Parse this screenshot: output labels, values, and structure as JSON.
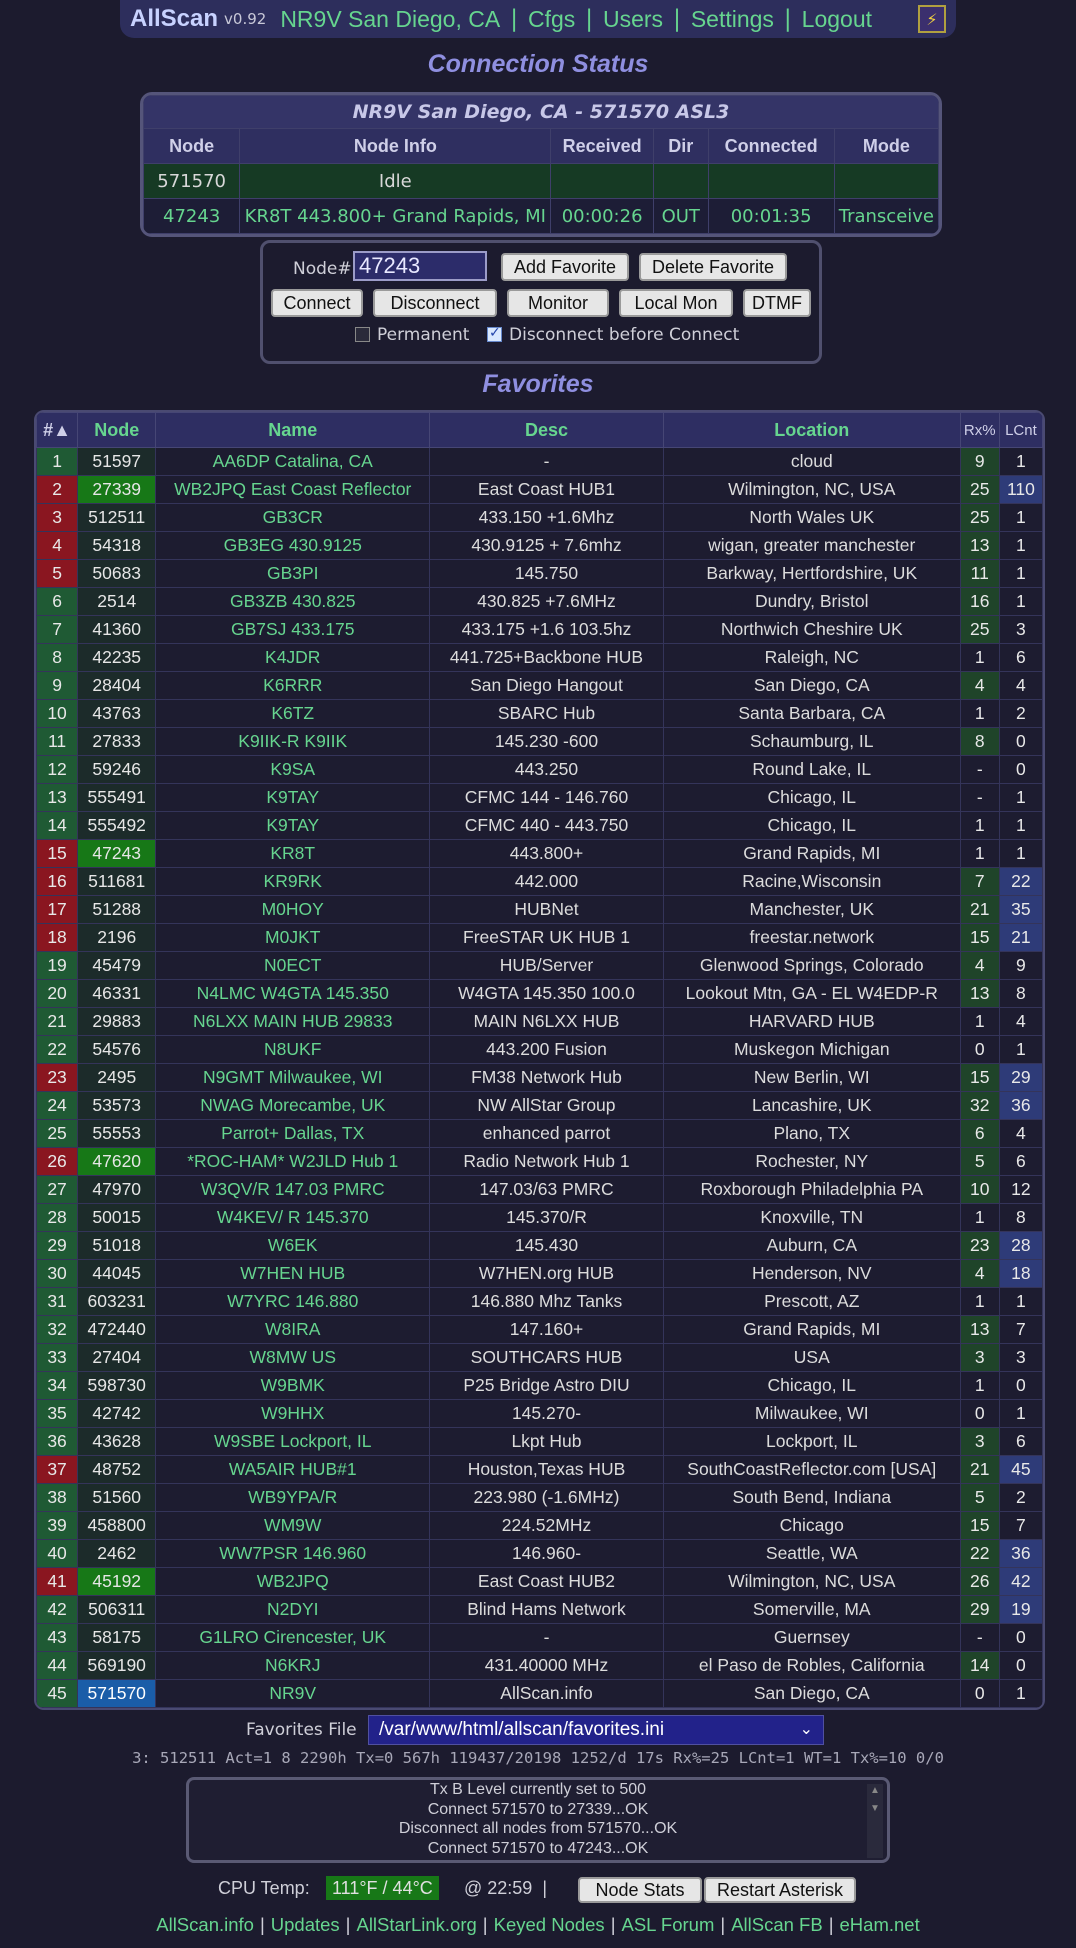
{
  "nav": {
    "brand": "AllScan",
    "version": "v0.92",
    "links": [
      "NR9V San Diego, CA",
      "Cfgs",
      "Users",
      "Settings",
      "Logout"
    ]
  },
  "connection": {
    "section_title": "Connection Status",
    "table_title": "NR9V San Diego, CA - 571570 ASL3",
    "headers": [
      "Node",
      "Node Info",
      "Received",
      "Dir",
      "Connected",
      "Mode"
    ],
    "rows": [
      {
        "node": "571570",
        "info": "Idle",
        "received": "",
        "dir": "",
        "connected": "",
        "mode": ""
      },
      {
        "node": "47243",
        "info": "KR8T 443.800+ Grand Rapids, MI",
        "received": "00:00:26",
        "dir": "OUT",
        "connected": "00:01:35",
        "mode": "Transceive"
      }
    ]
  },
  "controls": {
    "node_label": "Node#",
    "node_value": "47243",
    "add_favorite": "Add Favorite",
    "delete_favorite": "Delete Favorite",
    "connect": "Connect",
    "disconnect": "Disconnect",
    "monitor": "Monitor",
    "local_mon": "Local Mon",
    "dtmf": "DTMF",
    "permanent_label": "Permanent",
    "permanent_checked": false,
    "disconnect_before_label": "Disconnect before Connect",
    "disconnect_before_checked": true
  },
  "favorites": {
    "section_title": "Favorites",
    "headers": [
      "#▲",
      "Node",
      "Name",
      "Desc",
      "Location",
      "Rx%",
      "LCnt"
    ],
    "rows": [
      {
        "i": "1",
        "node": "51597",
        "name": "AA6DP Catalina, CA",
        "desc": "-",
        "loc": "cloud",
        "rx": "9",
        "lc": "1",
        "ic": "g",
        "nh": "",
        "rxa": true,
        "lca": false
      },
      {
        "i": "2",
        "node": "27339",
        "name": "WB2JPQ East Coast Reflector",
        "desc": "East Coast HUB1",
        "loc": "Wilmington, NC, USA",
        "rx": "25",
        "lc": "110",
        "ic": "r",
        "nh": "hl",
        "rxa": true,
        "lca": true
      },
      {
        "i": "3",
        "node": "512511",
        "name": "GB3CR",
        "desc": "433.150 +1.6Mhz",
        "loc": "North Wales UK",
        "rx": "25",
        "lc": "1",
        "ic": "r",
        "nh": "",
        "rxa": true,
        "lca": false
      },
      {
        "i": "4",
        "node": "54318",
        "name": "GB3EG 430.9125",
        "desc": "430.9125 + 7.6mhz",
        "loc": "wigan, greater manchester",
        "rx": "13",
        "lc": "1",
        "ic": "r",
        "nh": "",
        "rxa": true,
        "lca": false
      },
      {
        "i": "5",
        "node": "50683",
        "name": "GB3PI",
        "desc": "145.750",
        "loc": "Barkway, Hertfordshire, UK",
        "rx": "11",
        "lc": "1",
        "ic": "r",
        "nh": "",
        "rxa": true,
        "lca": false
      },
      {
        "i": "6",
        "node": "2514",
        "name": "GB3ZB 430.825",
        "desc": "430.825 +7.6MHz",
        "loc": "Dundry, Bristol",
        "rx": "16",
        "lc": "1",
        "ic": "g",
        "nh": "",
        "rxa": true,
        "lca": false
      },
      {
        "i": "7",
        "node": "41360",
        "name": "GB7SJ 433.175",
        "desc": "433.175 +1.6 103.5hz",
        "loc": "Northwich Cheshire UK",
        "rx": "25",
        "lc": "3",
        "ic": "g",
        "nh": "",
        "rxa": true,
        "lca": false
      },
      {
        "i": "8",
        "node": "42235",
        "name": "K4JDR",
        "desc": "441.725+Backbone HUB",
        "loc": "Raleigh, NC",
        "rx": "1",
        "lc": "6",
        "ic": "g",
        "nh": "",
        "rxa": false,
        "lca": false
      },
      {
        "i": "9",
        "node": "28404",
        "name": "K6RRR",
        "desc": "San Diego Hangout",
        "loc": "San Diego, CA",
        "rx": "4",
        "lc": "4",
        "ic": "g",
        "nh": "",
        "rxa": true,
        "lca": false
      },
      {
        "i": "10",
        "node": "43763",
        "name": "K6TZ",
        "desc": "SBARC Hub",
        "loc": "Santa Barbara, CA",
        "rx": "1",
        "lc": "2",
        "ic": "g",
        "nh": "",
        "rxa": false,
        "lca": false
      },
      {
        "i": "11",
        "node": "27833",
        "name": "K9IIK-R K9IIK",
        "desc": "145.230 -600",
        "loc": "Schaumburg, IL",
        "rx": "8",
        "lc": "0",
        "ic": "g",
        "nh": "",
        "rxa": true,
        "lca": false
      },
      {
        "i": "12",
        "node": "59246",
        "name": "K9SA",
        "desc": "443.250",
        "loc": "Round Lake, IL",
        "rx": "-",
        "lc": "0",
        "ic": "g",
        "nh": "",
        "rxa": false,
        "lca": false
      },
      {
        "i": "13",
        "node": "555491",
        "name": "K9TAY",
        "desc": "CFMC 144 - 146.760",
        "loc": "Chicago, IL",
        "rx": "-",
        "lc": "1",
        "ic": "g",
        "nh": "",
        "rxa": false,
        "lca": false
      },
      {
        "i": "14",
        "node": "555492",
        "name": "K9TAY",
        "desc": "CFMC 440 - 443.750",
        "loc": "Chicago, IL",
        "rx": "1",
        "lc": "1",
        "ic": "g",
        "nh": "",
        "rxa": false,
        "lca": false
      },
      {
        "i": "15",
        "node": "47243",
        "name": "KR8T",
        "desc": "443.800+",
        "loc": "Grand Rapids, MI",
        "rx": "1",
        "lc": "1",
        "ic": "r",
        "nh": "hl",
        "rxa": false,
        "lca": false
      },
      {
        "i": "16",
        "node": "511681",
        "name": "KR9RK",
        "desc": "442.000",
        "loc": "Racine,Wisconsin",
        "rx": "7",
        "lc": "22",
        "ic": "r",
        "nh": "",
        "rxa": true,
        "lca": true
      },
      {
        "i": "17",
        "node": "51288",
        "name": "M0HOY",
        "desc": "HUBNet",
        "loc": "Manchester, UK",
        "rx": "21",
        "lc": "35",
        "ic": "r",
        "nh": "",
        "rxa": true,
        "lca": true
      },
      {
        "i": "18",
        "node": "2196",
        "name": "M0JKT",
        "desc": "FreeSTAR UK HUB 1",
        "loc": "freestar.network",
        "rx": "15",
        "lc": "21",
        "ic": "r",
        "nh": "",
        "rxa": true,
        "lca": true
      },
      {
        "i": "19",
        "node": "45479",
        "name": "N0ECT",
        "desc": "HUB/Server",
        "loc": "Glenwood Springs, Colorado",
        "rx": "4",
        "lc": "9",
        "ic": "g",
        "nh": "",
        "rxa": true,
        "lca": false
      },
      {
        "i": "20",
        "node": "46331",
        "name": "N4LMC W4GTA 145.350",
        "desc": "W4GTA 145.350 100.0",
        "loc": "Lookout Mtn, GA - EL W4EDP-R",
        "rx": "13",
        "lc": "8",
        "ic": "g",
        "nh": "",
        "rxa": true,
        "lca": false
      },
      {
        "i": "21",
        "node": "29883",
        "name": "N6LXX MAIN HUB 29833",
        "desc": "MAIN N6LXX HUB",
        "loc": "HARVARD HUB",
        "rx": "1",
        "lc": "4",
        "ic": "g",
        "nh": "",
        "rxa": false,
        "lca": false
      },
      {
        "i": "22",
        "node": "54576",
        "name": "N8UKF",
        "desc": "443.200 Fusion",
        "loc": "Muskegon Michigan",
        "rx": "0",
        "lc": "1",
        "ic": "g",
        "nh": "",
        "rxa": false,
        "lca": false
      },
      {
        "i": "23",
        "node": "2495",
        "name": "N9GMT Milwaukee, WI",
        "desc": "FM38 Network Hub",
        "loc": "New Berlin, WI",
        "rx": "15",
        "lc": "29",
        "ic": "r",
        "nh": "",
        "rxa": true,
        "lca": true
      },
      {
        "i": "24",
        "node": "53573",
        "name": "NWAG Morecambe, UK",
        "desc": "NW AllStar Group",
        "loc": "Lancashire, UK",
        "rx": "32",
        "lc": "36",
        "ic": "g",
        "nh": "",
        "rxa": true,
        "lca": true
      },
      {
        "i": "25",
        "node": "55553",
        "name": "Parrot+ Dallas, TX",
        "desc": "enhanced parrot",
        "loc": "Plano, TX",
        "rx": "6",
        "lc": "4",
        "ic": "g",
        "nh": "",
        "rxa": true,
        "lca": false
      },
      {
        "i": "26",
        "node": "47620",
        "name": "*ROC-HAM* W2JLD Hub 1",
        "desc": "Radio Network Hub 1",
        "loc": "Rochester, NY",
        "rx": "5",
        "lc": "6",
        "ic": "r",
        "nh": "hl",
        "rxa": true,
        "lca": false
      },
      {
        "i": "27",
        "node": "47970",
        "name": "W3QV/R 147.03 PMRC",
        "desc": "147.03/63 PMRC",
        "loc": "Roxborough Philadelphia PA",
        "rx": "10",
        "lc": "12",
        "ic": "g",
        "nh": "",
        "rxa": true,
        "lca": false
      },
      {
        "i": "28",
        "node": "50015",
        "name": "W4KEV/ R 145.370",
        "desc": "145.370/R",
        "loc": "Knoxville, TN",
        "rx": "1",
        "lc": "8",
        "ic": "g",
        "nh": "",
        "rxa": false,
        "lca": false
      },
      {
        "i": "29",
        "node": "51018",
        "name": "W6EK",
        "desc": "145.430",
        "loc": "Auburn, CA",
        "rx": "23",
        "lc": "28",
        "ic": "g",
        "nh": "",
        "rxa": true,
        "lca": true
      },
      {
        "i": "30",
        "node": "44045",
        "name": "W7HEN HUB",
        "desc": "W7HEN.org HUB",
        "loc": "Henderson, NV",
        "rx": "4",
        "lc": "18",
        "ic": "g",
        "nh": "",
        "rxa": true,
        "lca": true
      },
      {
        "i": "31",
        "node": "603231",
        "name": "W7YRC 146.880",
        "desc": "146.880 Mhz Tanks",
        "loc": "Prescott, AZ",
        "rx": "1",
        "lc": "1",
        "ic": "g",
        "nh": "",
        "rxa": false,
        "lca": false
      },
      {
        "i": "32",
        "node": "472440",
        "name": "W8IRA",
        "desc": "147.160+",
        "loc": "Grand Rapids, MI",
        "rx": "13",
        "lc": "7",
        "ic": "g",
        "nh": "",
        "rxa": true,
        "lca": false
      },
      {
        "i": "33",
        "node": "27404",
        "name": "W8MW US",
        "desc": "SOUTHCARS HUB",
        "loc": "USA",
        "rx": "3",
        "lc": "3",
        "ic": "g",
        "nh": "",
        "rxa": true,
        "lca": false
      },
      {
        "i": "34",
        "node": "598730",
        "name": "W9BMK",
        "desc": "P25 Bridge Astro DIU",
        "loc": "Chicago, IL",
        "rx": "1",
        "lc": "0",
        "ic": "g",
        "nh": "",
        "rxa": false,
        "lca": false
      },
      {
        "i": "35",
        "node": "42742",
        "name": "W9HHX",
        "desc": "145.270-",
        "loc": "Milwaukee, WI",
        "rx": "0",
        "lc": "1",
        "ic": "g",
        "nh": "",
        "rxa": false,
        "lca": false
      },
      {
        "i": "36",
        "node": "43628",
        "name": "W9SBE Lockport, IL",
        "desc": "Lkpt Hub",
        "loc": "Lockport, IL",
        "rx": "3",
        "lc": "6",
        "ic": "g",
        "nh": "",
        "rxa": true,
        "lca": false
      },
      {
        "i": "37",
        "node": "48752",
        "name": "WA5AIR HUB#1",
        "desc": "Houston,Texas HUB",
        "loc": "SouthCoastReflector.com [USA]",
        "rx": "21",
        "lc": "45",
        "ic": "r",
        "nh": "",
        "rxa": true,
        "lca": true
      },
      {
        "i": "38",
        "node": "51560",
        "name": "WB9YPA/R",
        "desc": "223.980 (-1.6MHz)",
        "loc": "South Bend, Indiana",
        "rx": "5",
        "lc": "2",
        "ic": "g",
        "nh": "",
        "rxa": true,
        "lca": false
      },
      {
        "i": "39",
        "node": "458800",
        "name": "WM9W",
        "desc": "224.52MHz",
        "loc": "Chicago",
        "rx": "15",
        "lc": "7",
        "ic": "g",
        "nh": "",
        "rxa": true,
        "lca": false
      },
      {
        "i": "40",
        "node": "2462",
        "name": "WW7PSR 146.960",
        "desc": "146.960-",
        "loc": "Seattle, WA",
        "rx": "22",
        "lc": "36",
        "ic": "g",
        "nh": "",
        "rxa": true,
        "lca": true
      },
      {
        "i": "41",
        "node": "45192",
        "name": "WB2JPQ",
        "desc": "East Coast HUB2",
        "loc": "Wilmington, NC, USA",
        "rx": "26",
        "lc": "42",
        "ic": "r",
        "nh": "hl",
        "rxa": true,
        "lca": true
      },
      {
        "i": "42",
        "node": "506311",
        "name": "N2DYI",
        "desc": "Blind Hams Network",
        "loc": "Somerville, MA",
        "rx": "29",
        "lc": "19",
        "ic": "g",
        "nh": "",
        "rxa": true,
        "lca": true
      },
      {
        "i": "43",
        "node": "58175",
        "name": "G1LRO Cirencester, UK",
        "desc": "-",
        "loc": "Guernsey",
        "rx": "-",
        "lc": "0",
        "ic": "g",
        "nh": "",
        "rxa": false,
        "lca": false
      },
      {
        "i": "44",
        "node": "569190",
        "name": "N6KRJ",
        "desc": "431.40000 MHz",
        "loc": "el Paso de Robles, California",
        "rx": "14",
        "lc": "0",
        "ic": "g",
        "nh": "",
        "rxa": true,
        "lca": false
      },
      {
        "i": "45",
        "node": "571570",
        "name": "NR9V",
        "desc": "AllScan.info",
        "loc": "San Diego, CA",
        "rx": "0",
        "lc": "1",
        "ic": "g",
        "nh": "me",
        "rxa": false,
        "lca": false
      }
    ]
  },
  "favorites_file": {
    "label": "Favorites File",
    "value": "/var/www/html/allscan/favorites.ini"
  },
  "stats_line": "3: 512511 Act=1 8 2290h Tx=0 567h 119437/20198 1252/d 17s Rx%=25 LCnt=1 WT=1 Tx%=10 0/0",
  "log_lines": [
    "Tx B Level currently set to 500",
    "Connect 571570 to 27339...OK",
    "Disconnect all nodes from 571570...OK",
    "Connect 571570 to 47243...OK"
  ],
  "status": {
    "cpu_label": "CPU Temp:",
    "cpu_value": "111°F / 44°C",
    "time": "@ 22:59",
    "sep": "|",
    "node_stats": "Node Stats",
    "restart": "Restart Asterisk"
  },
  "footer_links": [
    "AllScan.info",
    "Updates",
    "AllStarLink.org",
    "Keyed Nodes",
    "ASL Forum",
    "AllScan FB",
    "eHam.net"
  ]
}
